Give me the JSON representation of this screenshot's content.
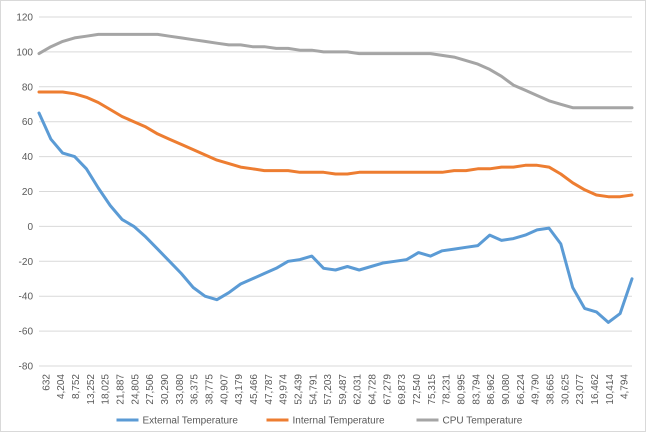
{
  "chart_data": {
    "type": "line",
    "title": "",
    "xlabel": "",
    "ylabel": "",
    "ylim": [
      -80,
      120
    ],
    "yticks": [
      -80,
      -60,
      -40,
      -20,
      0,
      20,
      40,
      60,
      80,
      100,
      120
    ],
    "grid": true,
    "legend_position": "bottom",
    "x_tick_labels": [
      "632",
      "4,204",
      "8,752",
      "13,252",
      "18,025",
      "21,887",
      "24,805",
      "27,506",
      "30,290",
      "33,080",
      "36,375",
      "38,775",
      "40,907",
      "43,179",
      "45,466",
      "47,787",
      "49,974",
      "52,439",
      "54,791",
      "57,203",
      "59,487",
      "62,031",
      "64,728",
      "67,279",
      "69,873",
      "72,540",
      "75,315",
      "78,231",
      "80,995",
      "83,794",
      "86,962",
      "90,080",
      "66,224",
      "49,790",
      "38,665",
      "30,625",
      "23,077",
      "16,462",
      "10,414",
      "4,794"
    ],
    "series": [
      {
        "name": "External Temperature",
        "color": "#5b9bd5",
        "x": [
          0,
          2,
          4,
          6,
          8,
          10,
          12,
          14,
          16,
          18,
          20,
          22,
          24,
          26,
          28,
          30,
          32,
          34,
          36,
          38,
          40,
          42,
          44,
          46,
          48,
          50,
          52,
          54,
          56,
          58,
          60,
          62,
          64,
          66,
          68,
          70,
          72,
          74,
          76,
          78,
          80,
          82,
          84,
          86,
          88,
          90,
          92,
          94,
          96,
          98,
          100
        ],
        "values": [
          65,
          50,
          42,
          40,
          33,
          22,
          12,
          4,
          0,
          -6,
          -13,
          -20,
          -27,
          -35,
          -40,
          -42,
          -38,
          -33,
          -30,
          -27,
          -24,
          -20,
          -19,
          -17,
          -24,
          -25,
          -23,
          -25,
          -23,
          -21,
          -20,
          -19,
          -15,
          -17,
          -14,
          -13,
          -12,
          -11,
          -5,
          -8,
          -7,
          -5,
          -2,
          -1,
          -10,
          -35,
          -47,
          -49,
          -55,
          -50,
          -30
        ]
      },
      {
        "name": "Internal Temperature",
        "color": "#ed7d31",
        "x": [
          0,
          2,
          4,
          6,
          8,
          10,
          12,
          14,
          16,
          18,
          20,
          22,
          24,
          26,
          28,
          30,
          32,
          34,
          36,
          38,
          40,
          42,
          44,
          46,
          48,
          50,
          52,
          54,
          56,
          58,
          60,
          62,
          64,
          66,
          68,
          70,
          72,
          74,
          76,
          78,
          80,
          82,
          84,
          86,
          88,
          90,
          92,
          94,
          96,
          98,
          100
        ],
        "values": [
          77,
          77,
          77,
          76,
          74,
          71,
          67,
          63,
          60,
          57,
          53,
          50,
          47,
          44,
          41,
          38,
          36,
          34,
          33,
          32,
          32,
          32,
          31,
          31,
          31,
          30,
          30,
          31,
          31,
          31,
          31,
          31,
          31,
          31,
          31,
          32,
          32,
          33,
          33,
          34,
          34,
          35,
          35,
          34,
          30,
          25,
          21,
          18,
          17,
          17,
          18
        ]
      },
      {
        "name": "CPU Temperature",
        "color": "#a5a5a5",
        "x": [
          0,
          2,
          4,
          6,
          8,
          10,
          12,
          14,
          16,
          18,
          20,
          22,
          24,
          26,
          28,
          30,
          32,
          34,
          36,
          38,
          40,
          42,
          44,
          46,
          48,
          50,
          52,
          54,
          56,
          58,
          60,
          62,
          64,
          66,
          68,
          70,
          72,
          74,
          76,
          78,
          80,
          82,
          84,
          86,
          88,
          90,
          92,
          94,
          96,
          98,
          100
        ],
        "values": [
          99,
          103,
          106,
          108,
          109,
          110,
          110,
          110,
          110,
          110,
          110,
          109,
          108,
          107,
          106,
          105,
          104,
          104,
          103,
          103,
          102,
          102,
          101,
          101,
          100,
          100,
          100,
          99,
          99,
          99,
          99,
          99,
          99,
          99,
          98,
          97,
          95,
          93,
          90,
          86,
          81,
          78,
          75,
          72,
          70,
          68,
          68,
          68,
          68,
          68,
          68
        ]
      }
    ]
  }
}
